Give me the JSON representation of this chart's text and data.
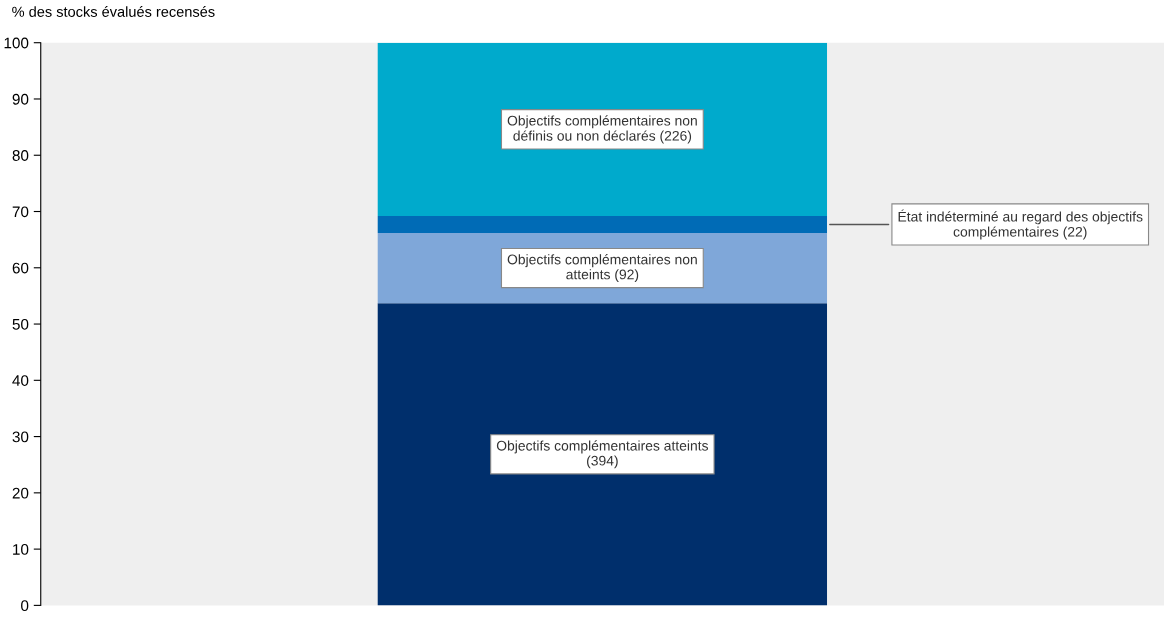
{
  "chart_data": {
    "type": "bar",
    "stacked": true,
    "ylabel": "% des stocks évalués recensés",
    "categories": [
      null
    ],
    "series": [
      {
        "name": "Objectifs complémentaires atteints (394)",
        "color": "#002f6c",
        "values": [
          53.7
        ]
      },
      {
        "name": "Objectifs complémentaires non atteints (92)",
        "color": "#7fa7d9",
        "values": [
          12.5
        ]
      },
      {
        "name": "État indéterminé au regard des objectifs complémentaires (22)",
        "color": "#006bb6",
        "values": [
          3.0
        ]
      },
      {
        "name": "Objectifs complémentaires non définis ou non déclarés (226)",
        "color": "#00aacc",
        "values": [
          30.8
        ]
      }
    ],
    "ylim": [
      0,
      100
    ],
    "yticks": [
      0,
      10,
      20,
      30,
      40,
      50,
      60,
      70,
      80,
      90,
      100
    ],
    "grid": false,
    "legend": false
  }
}
